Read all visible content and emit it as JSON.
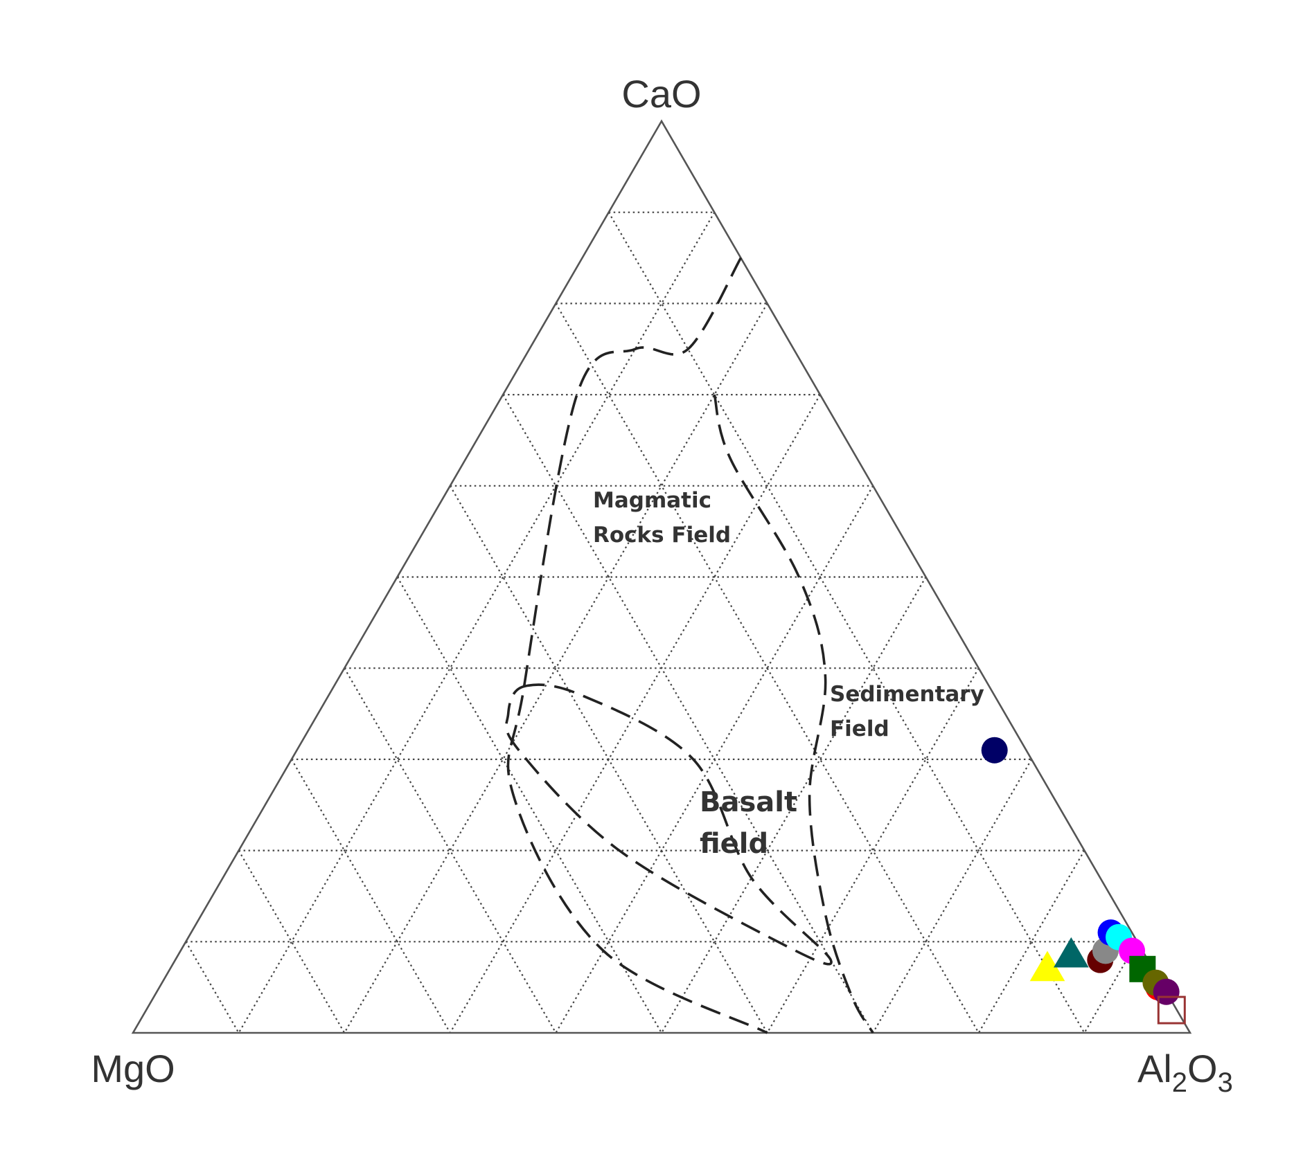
{
  "chart_data": {
    "type": "scatter",
    "subtype": "ternary",
    "vertices": {
      "top": "CaO",
      "left": "MgO",
      "right_main": "Al",
      "right_sub1": "2",
      "right_mid": "O",
      "right_sub2": "3"
    },
    "grid": {
      "divisions": 10,
      "style": "dotted"
    },
    "fields": [
      {
        "name": "magmatic",
        "label_lines": [
          "Magmatic",
          "Rocks Field"
        ],
        "boundary_left": [
          [
            0.85,
            0.0,
            0.15
          ],
          [
            0.75,
            0.1,
            0.15
          ],
          [
            0.75,
            0.15,
            0.1
          ],
          [
            0.7,
            0.23,
            0.07
          ],
          [
            0.38,
            0.44,
            0.18
          ],
          [
            0.26,
            0.51,
            0.23
          ],
          [
            0.09,
            0.51,
            0.4
          ],
          [
            0.0,
            0.4,
            0.6
          ]
        ],
        "boundary_right": [
          [
            0.7,
            0.1,
            0.2
          ],
          [
            0.63,
            0.12,
            0.25
          ],
          [
            0.5,
            0.12,
            0.38
          ],
          [
            0.39,
            0.15,
            0.46
          ],
          [
            0.26,
            0.23,
            0.51
          ],
          [
            0.13,
            0.28,
            0.59
          ],
          [
            0.04,
            0.3,
            0.66
          ],
          [
            0.0,
            0.3,
            0.7
          ]
        ]
      },
      {
        "name": "basalt",
        "label_lines": [
          "Basalt",
          "field"
        ],
        "boundary": [
          [
            0.38,
            0.44,
            0.18
          ],
          [
            0.37,
            0.39,
            0.24
          ],
          [
            0.3,
            0.32,
            0.38
          ],
          [
            0.17,
            0.33,
            0.5
          ],
          [
            0.08,
            0.3,
            0.62
          ],
          [
            0.1,
            0.34,
            0.56
          ],
          [
            0.2,
            0.44,
            0.36
          ],
          [
            0.31,
            0.48,
            0.21
          ],
          [
            0.35,
            0.47,
            0.18
          ],
          [
            0.38,
            0.44,
            0.18
          ]
        ]
      },
      {
        "name": "sedimentary",
        "label_lines": [
          "Sedimentary",
          "Field"
        ]
      }
    ],
    "points": [
      {
        "shape": "circle",
        "color": "#000066",
        "CaO": 0.31,
        "MgO": 0.03,
        "Al2O3": 0.66
      },
      {
        "shape": "triangle",
        "color": "#ffff00",
        "CaO": 0.07,
        "MgO": 0.1,
        "Al2O3": 0.83
      },
      {
        "shape": "triangle",
        "color": "#006666",
        "CaO": 0.085,
        "MgO": 0.07,
        "Al2O3": 0.845
      },
      {
        "shape": "circle",
        "color": "#660000",
        "CaO": 0.08,
        "MgO": 0.045,
        "Al2O3": 0.875
      },
      {
        "shape": "circle",
        "color": "#888888",
        "CaO": 0.09,
        "MgO": 0.035,
        "Al2O3": 0.875
      },
      {
        "shape": "circle",
        "color": "#0000ff",
        "CaO": 0.11,
        "MgO": 0.02,
        "Al2O3": 0.87
      },
      {
        "shape": "circle",
        "color": "#00ffff",
        "CaO": 0.105,
        "MgO": 0.015,
        "Al2O3": 0.88
      },
      {
        "shape": "circle",
        "color": "#ff00ff",
        "CaO": 0.09,
        "MgO": 0.01,
        "Al2O3": 0.9
      },
      {
        "shape": "circle",
        "color": "#ff0000",
        "CaO": 0.05,
        "MgO": 0.005,
        "Al2O3": 0.945
      },
      {
        "shape": "square",
        "color": "#006600",
        "CaO": 0.07,
        "MgO": 0.01,
        "Al2O3": 0.92
      },
      {
        "shape": "circle",
        "color": "#666600",
        "CaO": 0.055,
        "MgO": 0.005,
        "Al2O3": 0.94
      },
      {
        "shape": "circle",
        "color": "#660066",
        "CaO": 0.045,
        "MgO": 0.0,
        "Al2O3": 0.955
      },
      {
        "shape": "open-square",
        "color": "#993333",
        "CaO": 0.025,
        "MgO": 0.005,
        "Al2O3": 0.97
      }
    ]
  }
}
